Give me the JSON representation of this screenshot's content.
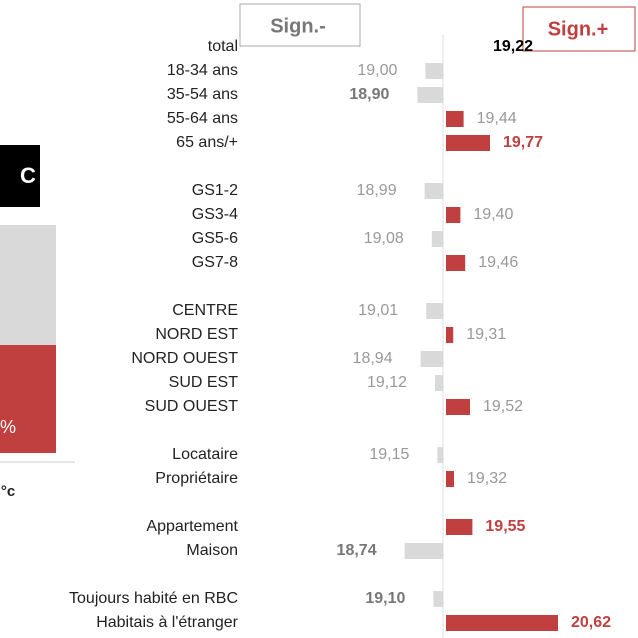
{
  "left_panel": {
    "badge": "C",
    "percent": "%",
    "unit": "°c"
  },
  "chart_data": {
    "type": "bar",
    "legend": [
      "Sign.-",
      "Sign.+"
    ],
    "categories": [
      "total",
      "18-34 ans",
      "35-54 ans",
      "55-64 ans",
      "65 ans/+",
      null,
      "GS1-2",
      "GS3-4",
      "GS5-6",
      "GS7-8",
      null,
      "CENTRE",
      "NORD EST",
      "NORD OUEST",
      "SUD EST",
      "SUD OUEST",
      null,
      "Locataire",
      "Propriétaire",
      null,
      "Appartement",
      "Maison",
      null,
      "Toujours habité en RBC",
      "Habitais à l'étranger"
    ],
    "values": [
      19.22,
      19.0,
      18.9,
      19.44,
      19.77,
      null,
      18.99,
      19.4,
      19.08,
      19.46,
      null,
      19.01,
      19.31,
      18.94,
      19.12,
      19.52,
      null,
      19.15,
      19.32,
      null,
      19.55,
      18.74,
      null,
      19.1,
      20.62
    ],
    "value_labels": [
      "19,22",
      "19,00",
      "18,90",
      "19,44",
      "19,77",
      null,
      "18,99",
      "19,40",
      "19,08",
      "19,46",
      null,
      "19,01",
      "19,31",
      "18,94",
      "19,12",
      "19,52",
      null,
      "19,15",
      "19,32",
      null,
      "19,55",
      "18,74",
      null,
      "19,10",
      "20,62"
    ],
    "bold": [
      0,
      2,
      4,
      20,
      21,
      23,
      24
    ],
    "colors": {
      "above": "#c0403f",
      "below": "#d9d9d9"
    }
  }
}
